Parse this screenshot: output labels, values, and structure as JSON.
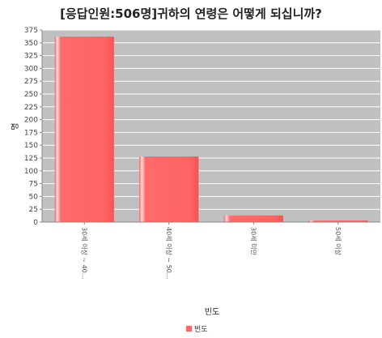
{
  "chart_data": {
    "type": "bar",
    "title": "[응답인원:506명]귀하의 연령은 어떻게 되십니까?",
    "xlabel": "빈도",
    "ylabel": "명",
    "categories": [
      "30세 이상 ~ 40...",
      "40세 이상 ~ 50...",
      "30세 미만",
      "50세 이상"
    ],
    "series": [
      {
        "name": "빈도",
        "values": [
          362,
          128,
          13,
          3
        ]
      }
    ],
    "ylim": [
      0,
      375
    ],
    "yticks": [
      0,
      25,
      50,
      75,
      100,
      125,
      150,
      175,
      200,
      225,
      250,
      275,
      300,
      325,
      350,
      375
    ],
    "grid": true,
    "legend_position": "bottom-center",
    "colors": {
      "bar": "#ff6666",
      "bar_highlight": "#ffd6d6",
      "plot_bg": "#c0c0c0",
      "grid": "#ffffff"
    }
  }
}
